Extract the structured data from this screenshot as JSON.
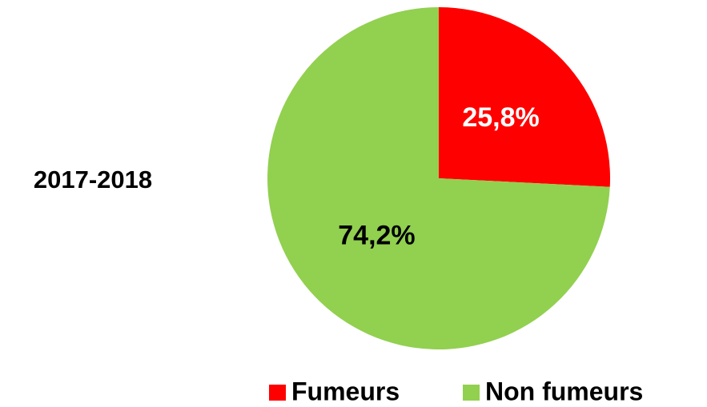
{
  "chart_data": {
    "type": "pie",
    "title": "2017-2018",
    "categories": [
      "Fumeurs",
      "Non fumeurs"
    ],
    "values": [
      25.8,
      74.2
    ],
    "value_labels": [
      "25,8%",
      "74,2%"
    ],
    "colors": [
      "#ff0000",
      "#92d050"
    ],
    "label_colors": [
      "#ffffff",
      "#000000"
    ],
    "legend": "bottom"
  }
}
